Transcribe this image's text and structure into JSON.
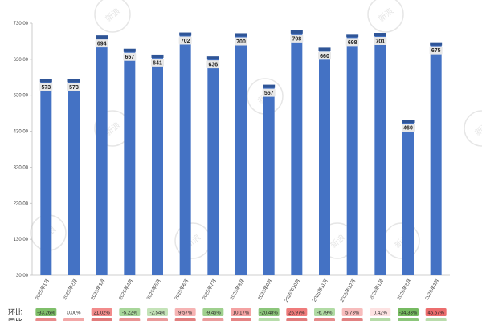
{
  "chart_data": {
    "type": "bar",
    "title": "",
    "xlabel": "",
    "ylabel": "",
    "ylim": [
      30,
      730
    ],
    "yticks": [
      "730.00",
      "630.00",
      "530.00",
      "430.00",
      "330.00",
      "230.00",
      "130.00",
      "30.00"
    ],
    "ytick_values": [
      730,
      630,
      530,
      430,
      330,
      230,
      130,
      30
    ],
    "categories": [
      "2025年1月",
      "2025年2月",
      "2025年3月",
      "2025年4月",
      "2025年5月",
      "2025年6月",
      "2025年7月",
      "2025年8月",
      "2025年9月",
      "2025年10月",
      "2025年11月",
      "2025年12月",
      "2026年1月",
      "2026年2月",
      "2026年3月"
    ],
    "values": [
      573,
      573,
      694,
      657,
      641,
      702,
      636,
      700,
      557,
      708,
      660,
      698,
      701,
      460,
      675
    ],
    "value_labels": [
      "573",
      "573",
      "694",
      "657",
      "641",
      "702",
      "636",
      "700",
      "557",
      "708",
      "660",
      "698",
      "701",
      "460",
      "675"
    ],
    "bar_color": "#4472c4",
    "grid": false,
    "legend": "none"
  },
  "table_rows": {
    "mom": {
      "label": "环比",
      "values": [
        "-33.26%",
        "0.00%",
        "21.02%",
        "-5.22%",
        "-2.54%",
        "9.57%",
        "-9.46%",
        "10.17%",
        "-20.48%",
        "26.97%",
        "-6.79%",
        "5.73%",
        "0.42%",
        "-34.33%",
        "46.67%"
      ],
      "colors": [
        "#7fbf6a",
        "#ffffff",
        "#f28b8b",
        "#a8d69a",
        "#c4e3b8",
        "#f6b3b3",
        "#9fd08e",
        "#f4a2a2",
        "#8cc67b",
        "#ef7b7b",
        "#b1dba4",
        "#f7bcbc",
        "#fde2e2",
        "#76ba61",
        "#ec6d6d"
      ]
    },
    "yoy": {
      "label": "同比",
      "colors": [
        "#e88a8a",
        "#f2a7a7",
        "#e27b7b",
        "#e99393",
        "#ea9a9a",
        "#e27f7f",
        "#ea9c9c",
        "#e58484",
        "#b7dcaa",
        "#e27c7c",
        "#e58a8a",
        "#e18181",
        "#b6dba8",
        "#8cc67b",
        "#b9dcab"
      ]
    }
  },
  "watermark": "新浪"
}
